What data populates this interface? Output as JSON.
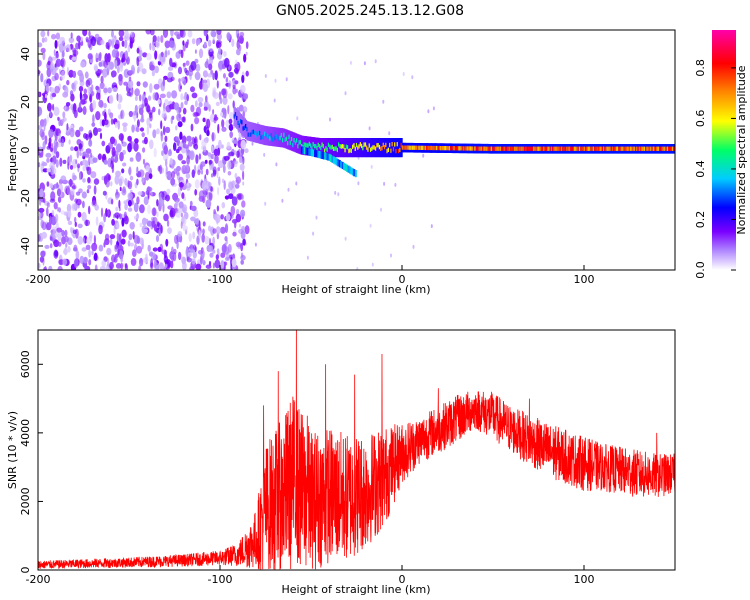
{
  "figure": {
    "title": "GN05.2025.245.13.12.G08"
  },
  "chart_data": [
    {
      "type": "heatmap",
      "xlabel": "Height of straight line (km)",
      "ylabel": "Frequency (Hz)",
      "xlim": [
        -200,
        150
      ],
      "ylim": [
        -50,
        50
      ],
      "x_ticks": [
        "-200",
        "-100",
        "0",
        "100"
      ],
      "x_tick_values": [
        -200,
        -100,
        0,
        100
      ],
      "y_ticks": [
        "-40",
        "-20",
        "0",
        "20",
        "40"
      ],
      "y_tick_values": [
        -40,
        -20,
        0,
        20,
        40
      ],
      "colorbar": {
        "label": "Normalized spectral amplitude",
        "range": [
          0,
          0.95
        ],
        "ticks": [
          "0.0",
          "0.2",
          "0.4",
          "0.6",
          "0.8"
        ],
        "tick_values": [
          0.0,
          0.2,
          0.4,
          0.6,
          0.8
        ],
        "colors": [
          "#ffffff",
          "#7a00ff",
          "#0000ff",
          "#00ccff",
          "#00ff66",
          "#ffff00",
          "#ff8800",
          "#ff0000",
          "#ff00aa"
        ]
      },
      "features": {
        "noise_region_x": [
          -200,
          -90
        ],
        "signal_track": [
          {
            "x": -92,
            "freq": 14,
            "amp": 0.3
          },
          {
            "x": -85,
            "freq": 8,
            "amp": 0.35
          },
          {
            "x": -75,
            "freq": 6,
            "amp": 0.4
          },
          {
            "x": -65,
            "freq": 5,
            "amp": 0.45
          },
          {
            "x": -55,
            "freq": 2,
            "amp": 0.5
          },
          {
            "x": -45,
            "freq": 1,
            "amp": 0.55
          },
          {
            "x": -30,
            "freq": 1,
            "amp": 0.65
          },
          {
            "x": -15,
            "freq": 1,
            "amp": 0.75
          },
          {
            "x": 0,
            "freq": 1,
            "amp": 0.85
          },
          {
            "x": 50,
            "freq": 0.5,
            "amp": 0.9
          },
          {
            "x": 95,
            "freq": 0.5,
            "amp": 0.9
          },
          {
            "x": 150,
            "freq": 0.5,
            "amp": 0.9
          }
        ],
        "secondary_branch": [
          {
            "x": -55,
            "freq": 0
          },
          {
            "x": -40,
            "freq": -3
          },
          {
            "x": -25,
            "freq": -10
          }
        ]
      }
    },
    {
      "type": "line",
      "xlabel": "Height of straight line (km)",
      "ylabel": "SNR (10 * v/v)",
      "xlim": [
        -200,
        150
      ],
      "ylim": [
        0,
        7000
      ],
      "color": "#ff0000",
      "x_ticks": [
        "-200",
        "-100",
        "0",
        "100"
      ],
      "x_tick_values": [
        -200,
        -100,
        0,
        100
      ],
      "y_ticks": [
        "0",
        "2000",
        "4000",
        "6000"
      ],
      "y_tick_values": [
        0,
        2000,
        4000,
        6000
      ],
      "envelope": {
        "x": [
          -200,
          -150,
          -120,
          -100,
          -90,
          -80,
          -75,
          -65,
          -60,
          -50,
          -40,
          -30,
          -20,
          -10,
          0,
          10,
          20,
          30,
          40,
          50,
          60,
          70,
          80,
          90,
          100,
          110,
          120,
          130,
          140,
          150
        ],
        "baseline": [
          150,
          220,
          280,
          350,
          450,
          900,
          1800,
          2200,
          2600,
          2000,
          2200,
          2100,
          2300,
          2700,
          3400,
          3800,
          4100,
          4400,
          4700,
          4500,
          4100,
          3800,
          3500,
          3300,
          3100,
          3000,
          2900,
          2800,
          2750,
          2800
        ],
        "amplitude": [
          120,
          150,
          180,
          220,
          350,
          900,
          1900,
          2300,
          2600,
          2100,
          2000,
          1900,
          1700,
          1500,
          900,
          700,
          700,
          700,
          600,
          700,
          700,
          750,
          800,
          800,
          800,
          700,
          700,
          700,
          650,
          600
        ]
      },
      "spikes": [
        {
          "x": -92,
          "y": 650
        },
        {
          "x": -76,
          "y": 4800
        },
        {
          "x": -68,
          "y": 5800
        },
        {
          "x": -58,
          "y": 7000
        },
        {
          "x": -52,
          "y": 4500
        },
        {
          "x": -42,
          "y": 6000
        },
        {
          "x": -26,
          "y": 5700
        },
        {
          "x": -11,
          "y": 6300
        },
        {
          "x": 20,
          "y": 5300
        },
        {
          "x": 70,
          "y": 5000
        },
        {
          "x": 140,
          "y": 4000
        }
      ]
    }
  ]
}
